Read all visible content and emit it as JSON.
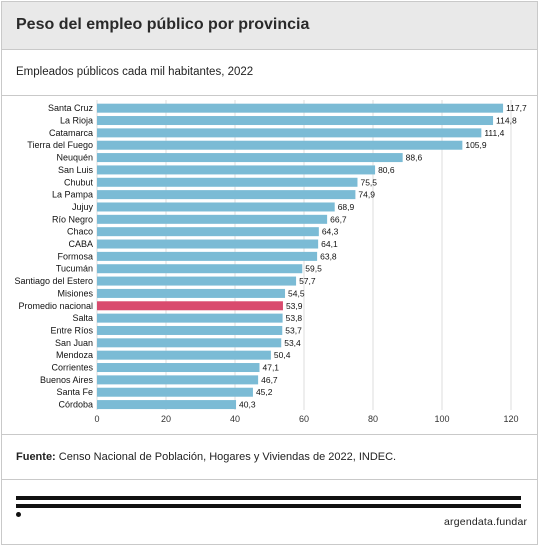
{
  "header": {
    "title": "Peso del empleo público por provincia"
  },
  "subtitle": "Empleados públicos cada mil habitantes, 2022",
  "source": {
    "label": "Fuente:",
    "text": " Censo Nacional de Población, Hogares y Viviendas de 2022, INDEC."
  },
  "brand": "argendata.fundar",
  "colors": {
    "bar": "#7bbbd5",
    "highlight": "#d94b6e",
    "grid": "#dddddd"
  },
  "chart_data": {
    "type": "bar",
    "orientation": "horizontal",
    "categories": [
      "Santa Cruz",
      "La Rioja",
      "Catamarca",
      "Tierra del Fuego",
      "Neuquén",
      "San Luis",
      "Chubut",
      "La Pampa",
      "Jujuy",
      "Río Negro",
      "Chaco",
      "CABA",
      "Formosa",
      "Tucumán",
      "Santiago del Estero",
      "Misiones",
      "Promedio nacional",
      "Salta",
      "Entre Ríos",
      "San Juan",
      "Mendoza",
      "Corrientes",
      "Buenos Aires",
      "Santa Fe",
      "Córdoba"
    ],
    "values": [
      117.7,
      114.8,
      111.4,
      105.9,
      88.6,
      80.6,
      75.5,
      74.9,
      68.9,
      66.7,
      64.3,
      64.1,
      63.8,
      59.5,
      57.7,
      54.5,
      53.9,
      53.8,
      53.7,
      53.4,
      50.4,
      47.1,
      46.7,
      45.2,
      40.3
    ],
    "value_labels": [
      "117,7",
      "114,8",
      "111,4",
      "105,9",
      "88,6",
      "80,6",
      "75,5",
      "74,9",
      "68,9",
      "66,7",
      "64,3",
      "64,1",
      "63,8",
      "59,5",
      "57,7",
      "54,5",
      "53,9",
      "53,8",
      "53,7",
      "53,4",
      "50,4",
      "47,1",
      "46,7",
      "45,2",
      "40,3"
    ],
    "highlight": "Promedio nacional",
    "xlim": [
      0,
      125
    ],
    "xticks": [
      0,
      20,
      40,
      60,
      80,
      100,
      120
    ],
    "grid": true
  }
}
